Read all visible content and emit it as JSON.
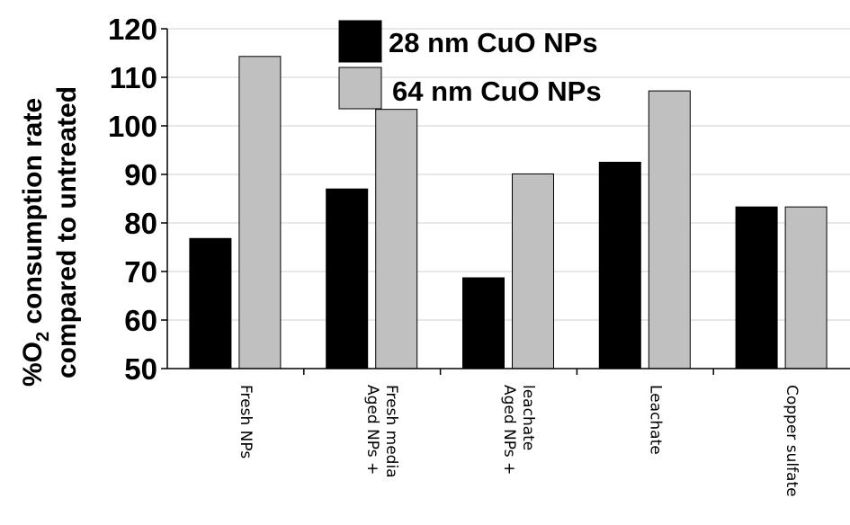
{
  "chart_data": {
    "type": "bar",
    "title": "",
    "ylabel_line1_prefix": "%O",
    "ylabel_line1_sub": "2",
    "ylabel_line1_suffix": " consumption rate",
    "ylabel_line2": "compared to untreated",
    "ylim": [
      50,
      120
    ],
    "yticks": [
      50,
      60,
      70,
      80,
      90,
      100,
      110,
      120
    ],
    "grid": true,
    "legend_position": "top-center",
    "categories": [
      [
        "Fresh NPs"
      ],
      [
        "Aged NPs +",
        "Fresh media"
      ],
      [
        "Aged NPs +",
        "leachate"
      ],
      [
        "Leachate"
      ],
      [
        "Copper sulfate"
      ]
    ],
    "series": [
      {
        "name": "28 nm CuO NPs",
        "color": "#000000",
        "values": [
          76.8,
          87.0,
          68.7,
          92.5,
          83.3
        ]
      },
      {
        "name": "64 nm CuO NPs",
        "color": "#c0c0c0",
        "values": [
          114.3,
          103.4,
          90.1,
          107.2,
          83.3
        ]
      }
    ]
  }
}
